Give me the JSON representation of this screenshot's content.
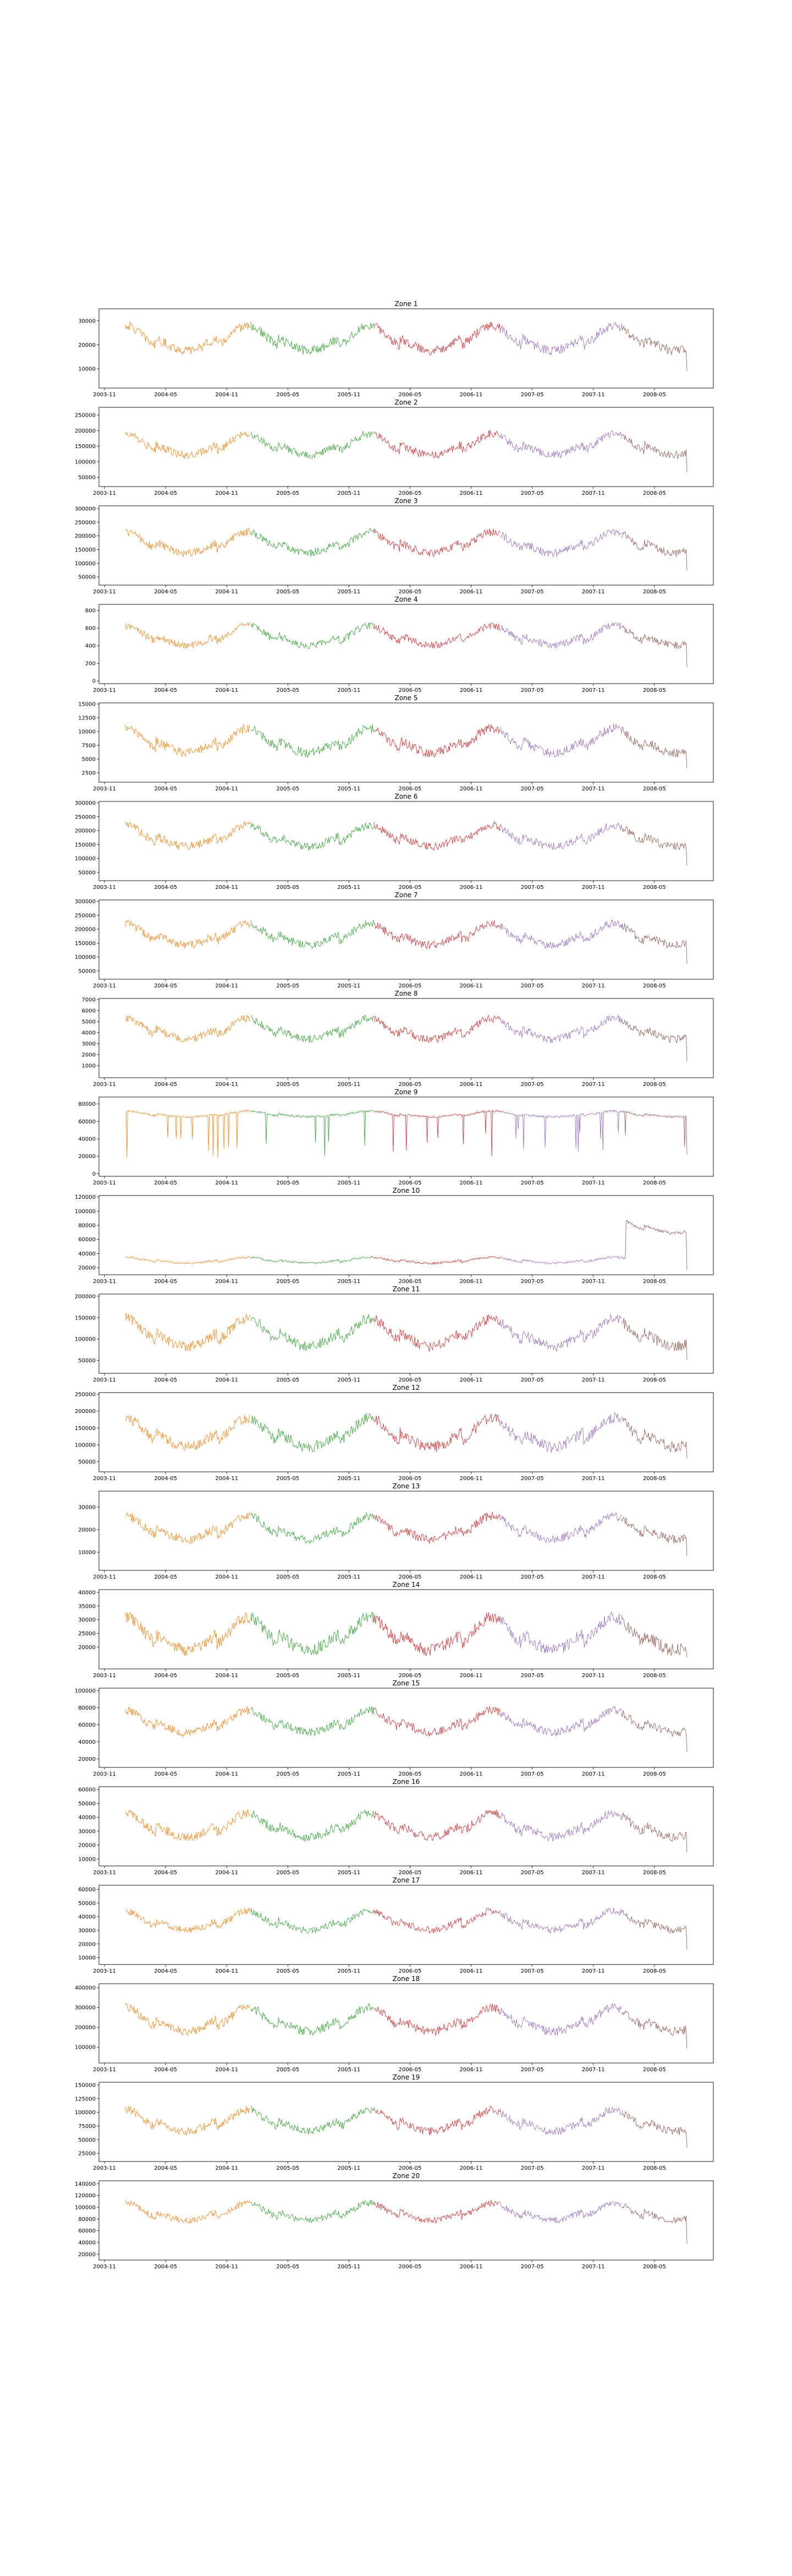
{
  "figure": {
    "x_tick_labels": [
      "2003-11",
      "2004-05",
      "2004-11",
      "2005-05",
      "2005-11",
      "2006-05",
      "2006-11",
      "2007-05",
      "2007-11",
      "2008-05"
    ],
    "segment_colors": [
      "#ff7f0e",
      "#2ca02c",
      "#d62728",
      "#9467bd",
      "#8c564b"
    ]
  },
  "chart_data": [
    {
      "type": "line",
      "title": "Zone 1",
      "base": 22000,
      "amp": 6000,
      "ylim": [
        2000,
        35000
      ],
      "yticks": [
        10000,
        20000,
        30000
      ],
      "ytick_labels": [
        "10000",
        "20000",
        "30000"
      ]
    },
    {
      "type": "line",
      "title": "Zone 2",
      "base": 150000,
      "amp": 40000,
      "ylim": [
        20000,
        275000
      ],
      "yticks": [
        50000,
        100000,
        150000,
        200000,
        250000
      ],
      "ytick_labels": [
        "50000",
        "100000",
        "150000",
        "200000",
        "250000"
      ]
    },
    {
      "type": "line",
      "title": "Zone 3",
      "base": 170000,
      "amp": 45000,
      "ylim": [
        20000,
        310000
      ],
      "yticks": [
        50000,
        100000,
        150000,
        200000,
        250000,
        300000
      ],
      "ytick_labels": [
        "50000",
        "100000",
        "150000",
        "200000",
        "250000",
        "300000"
      ]
    },
    {
      "type": "line",
      "title": "Zone 4",
      "base": 500,
      "amp": 130,
      "ylim": [
        -30,
        870
      ],
      "yticks": [
        0,
        200,
        400,
        600,
        800
      ],
      "ytick_labels": [
        "0",
        "200",
        "400",
        "600",
        "800"
      ]
    },
    {
      "type": "line",
      "title": "Zone 5",
      "base": 8000,
      "amp": 2600,
      "ylim": [
        800,
        15200
      ],
      "yticks": [
        2500,
        5000,
        7500,
        10000,
        12500,
        15000
      ],
      "ytick_labels": [
        "2500",
        "5000",
        "7500",
        "10000",
        "12500",
        "15000"
      ]
    },
    {
      "type": "line",
      "title": "Zone 6",
      "base": 175000,
      "amp": 45000,
      "ylim": [
        20000,
        305000
      ],
      "yticks": [
        50000,
        100000,
        150000,
        200000,
        250000,
        300000
      ],
      "ytick_labels": [
        "50000",
        "100000",
        "150000",
        "200000",
        "250000",
        "300000"
      ]
    },
    {
      "type": "line",
      "title": "Zone 7",
      "base": 175000,
      "amp": 45000,
      "ylim": [
        20000,
        305000
      ],
      "yticks": [
        50000,
        100000,
        150000,
        200000,
        250000,
        300000
      ],
      "ytick_labels": [
        "50000",
        "100000",
        "150000",
        "200000",
        "250000",
        "300000"
      ]
    },
    {
      "type": "line",
      "title": "Zone 8",
      "base": 4200,
      "amp": 1100,
      "ylim": [
        -100,
        7100
      ],
      "yticks": [
        1000,
        2000,
        3000,
        4000,
        5000,
        6000,
        7000
      ],
      "ytick_labels": [
        "1000",
        "2000",
        "3000",
        "4000",
        "5000",
        "6000",
        "7000"
      ]
    },
    {
      "type": "line",
      "title": "Zone 9",
      "base": 68000,
      "amp": 4000,
      "ylim": [
        -3000,
        88000
      ],
      "yticks": [
        0,
        20000,
        40000,
        60000,
        80000
      ],
      "ytick_labels": [
        "0",
        "20000",
        "40000",
        "60000",
        "80000"
      ]
    },
    {
      "type": "line",
      "title": "Zone 10",
      "base": 30000,
      "amp": 5000,
      "ylim": [
        10000,
        122000
      ],
      "yticks": [
        20000,
        40000,
        60000,
        80000,
        100000,
        120000
      ],
      "ytick_labels": [
        "20000",
        "40000",
        "60000",
        "80000",
        "100000",
        "120000"
      ]
    },
    {
      "type": "line",
      "title": "Zone 11",
      "base": 110000,
      "amp": 38000,
      "ylim": [
        20000,
        205000
      ],
      "yticks": [
        50000,
        100000,
        150000,
        200000
      ],
      "ytick_labels": [
        "50000",
        "100000",
        "150000",
        "200000"
      ]
    },
    {
      "type": "line",
      "title": "Zone 12",
      "base": 130000,
      "amp": 50000,
      "ylim": [
        20000,
        255000
      ],
      "yticks": [
        50000,
        100000,
        150000,
        200000,
        250000
      ],
      "ytick_labels": [
        "50000",
        "100000",
        "150000",
        "200000",
        "250000"
      ]
    },
    {
      "type": "line",
      "title": "Zone 13",
      "base": 20000,
      "amp": 6000,
      "ylim": [
        2000,
        37000
      ],
      "yticks": [
        10000,
        20000,
        30000
      ],
      "ytick_labels": [
        "10000",
        "20000",
        "30000"
      ]
    },
    {
      "type": "line",
      "title": "Zone 14",
      "base": 24000,
      "amp": 7000,
      "ylim": [
        12000,
        41000
      ],
      "yticks": [
        20000,
        25000,
        30000,
        35000,
        40000
      ],
      "ytick_labels": [
        "20000",
        "25000",
        "30000",
        "35000",
        "40000"
      ]
    },
    {
      "type": "line",
      "title": "Zone 15",
      "base": 62000,
      "amp": 15000,
      "ylim": [
        10000,
        103000
      ],
      "yticks": [
        20000,
        40000,
        60000,
        80000,
        100000
      ],
      "ytick_labels": [
        "20000",
        "40000",
        "60000",
        "80000",
        "100000"
      ]
    },
    {
      "type": "line",
      "title": "Zone 16",
      "base": 33000,
      "amp": 10000,
      "ylim": [
        5000,
        62000
      ],
      "yticks": [
        10000,
        20000,
        30000,
        40000,
        50000,
        60000
      ],
      "ytick_labels": [
        "10000",
        "20000",
        "30000",
        "40000",
        "50000",
        "60000"
      ]
    },
    {
      "type": "line",
      "title": "Zone 17",
      "base": 36000,
      "amp": 8000,
      "ylim": [
        5000,
        63000
      ],
      "yticks": [
        10000,
        20000,
        30000,
        40000,
        50000,
        60000
      ],
      "ytick_labels": [
        "10000",
        "20000",
        "30000",
        "40000",
        "50000",
        "60000"
      ]
    },
    {
      "type": "line",
      "title": "Zone 18",
      "base": 230000,
      "amp": 70000,
      "ylim": [
        20000,
        420000
      ],
      "yticks": [
        100000,
        200000,
        300000,
        400000
      ],
      "ytick_labels": [
        "100000",
        "200000",
        "300000",
        "400000"
      ]
    },
    {
      "type": "line",
      "title": "Zone 19",
      "base": 82000,
      "amp": 23000,
      "ylim": [
        10000,
        155000
      ],
      "yticks": [
        25000,
        50000,
        75000,
        100000,
        125000,
        150000
      ],
      "ytick_labels": [
        "25000",
        "50000",
        "75000",
        "100000",
        "125000",
        "150000"
      ]
    },
    {
      "type": "line",
      "title": "Zone 20",
      "base": 90000,
      "amp": 17000,
      "ylim": [
        10000,
        145000
      ],
      "yticks": [
        20000,
        40000,
        60000,
        80000,
        100000,
        120000,
        140000
      ],
      "ytick_labels": [
        "20000",
        "40000",
        "60000",
        "80000",
        "100000",
        "120000",
        "140000"
      ]
    }
  ]
}
